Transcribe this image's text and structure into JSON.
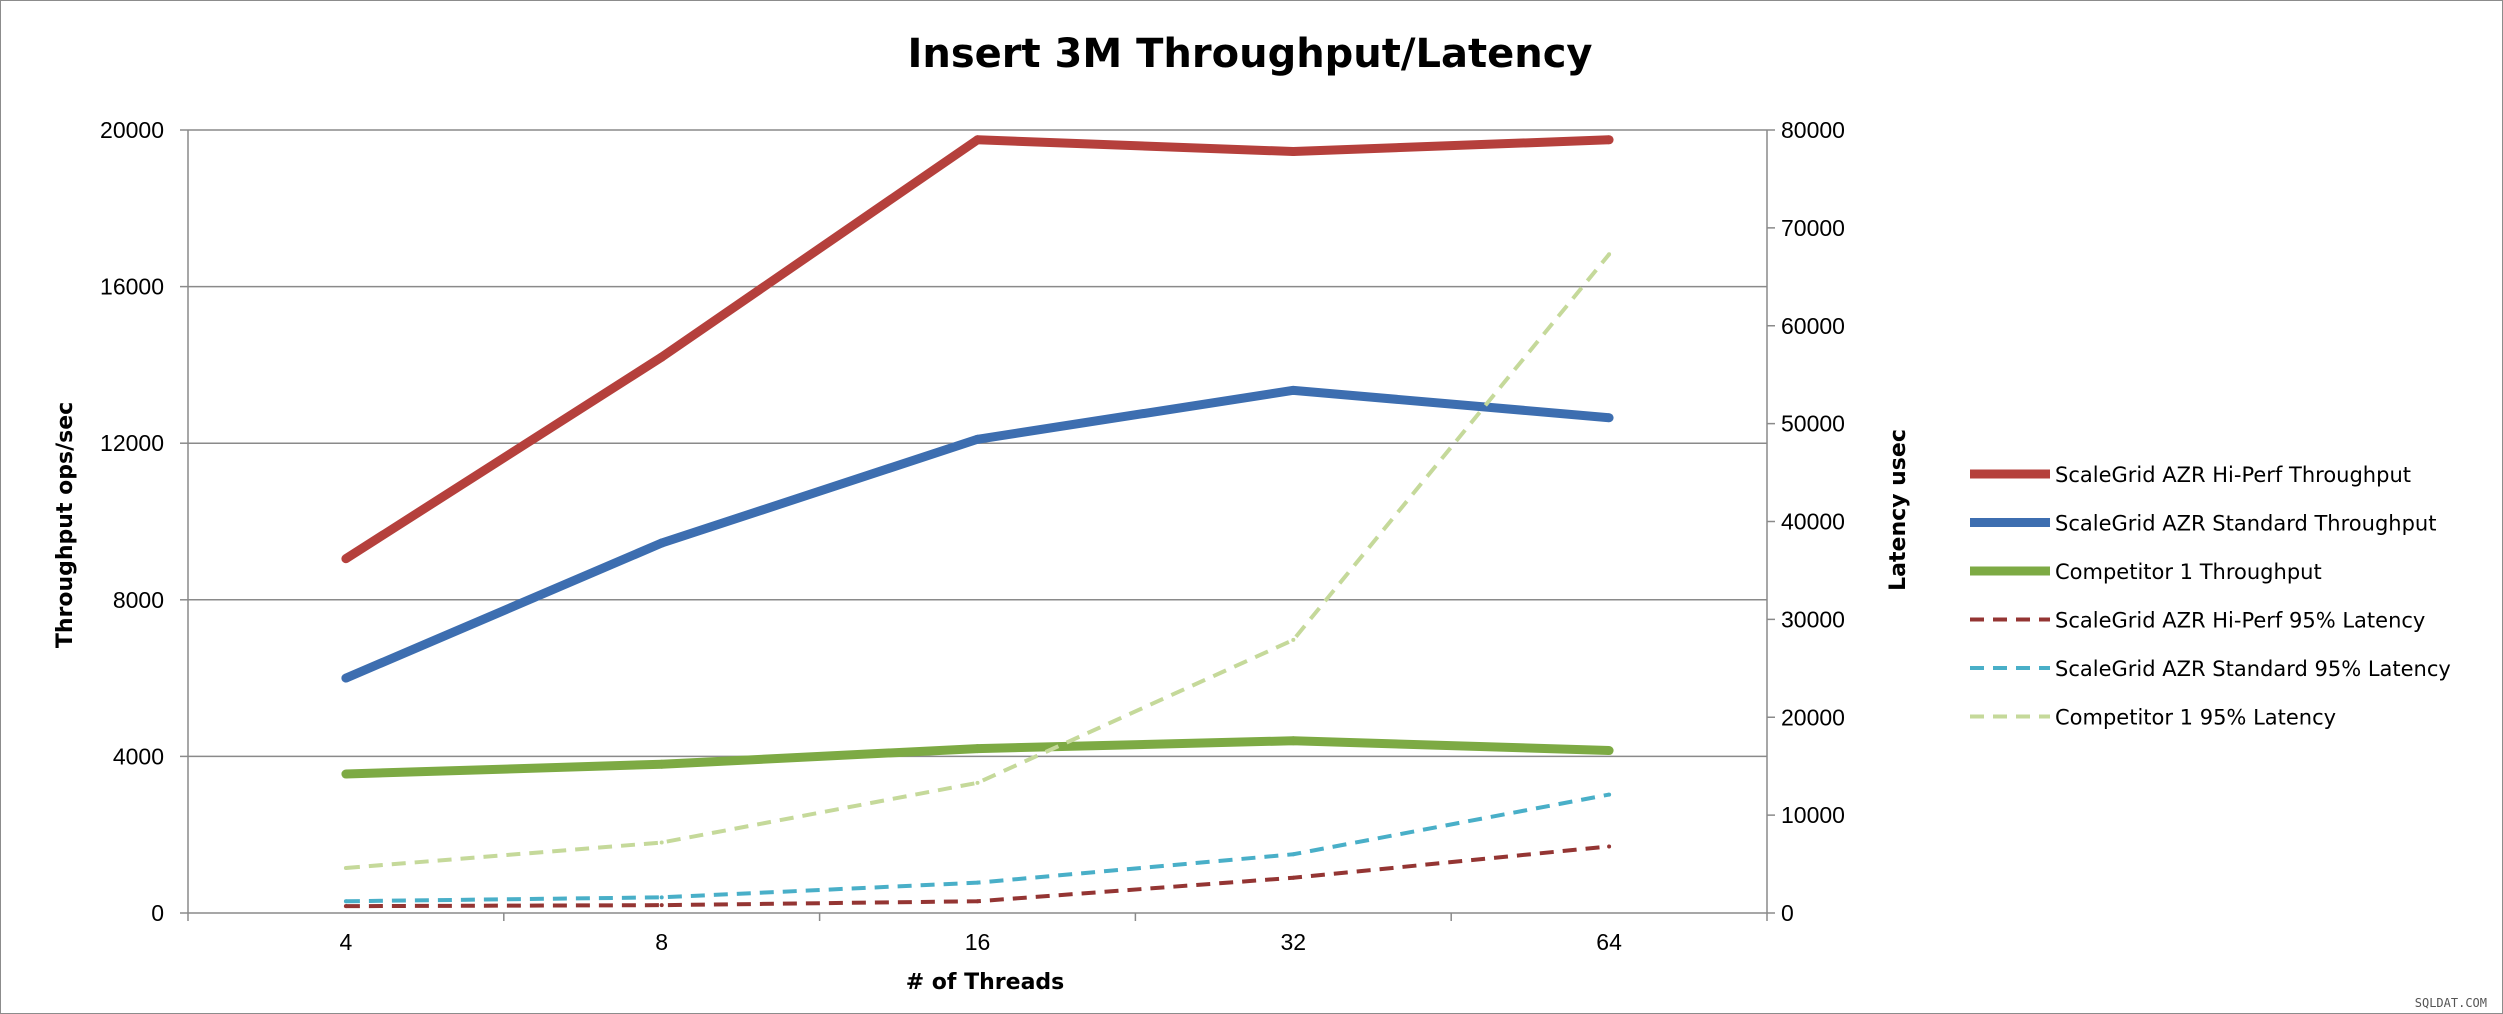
{
  "chart_data": {
    "type": "line",
    "title": "Insert 3M Throughput/Latency",
    "xlabel": "# of Threads",
    "ylabel": "Throughput ops/sec",
    "y2label": "Latency usec",
    "categories": [
      "4",
      "8",
      "16",
      "32",
      "64"
    ],
    "ylim": [
      0,
      20000
    ],
    "y2lim": [
      0,
      80000
    ],
    "yticks": [
      "0",
      "4000",
      "8000",
      "12000",
      "16000",
      "20000"
    ],
    "y2ticks": [
      "0",
      "10000",
      "20000",
      "30000",
      "40000",
      "50000",
      "60000",
      "70000",
      "80000"
    ],
    "grid": true,
    "legend_position": "right",
    "series": [
      {
        "name": "ScaleGrid AZR Hi-Perf Throughput",
        "axis": "left",
        "style": "solid",
        "color": "#b5403c",
        "values": [
          9050,
          14200,
          19750,
          19450,
          19750
        ]
      },
      {
        "name": "ScaleGrid AZR Standard Throughput",
        "axis": "left",
        "style": "solid",
        "color": "#3d6eb0",
        "values": [
          6000,
          9450,
          12100,
          13350,
          12650
        ]
      },
      {
        "name": "Competitor 1 Throughput",
        "axis": "left",
        "style": "solid",
        "color": "#7daa44",
        "values": [
          3550,
          3800,
          4200,
          4400,
          4150
        ]
      },
      {
        "name": "ScaleGrid AZR Hi-Perf 95% Latency",
        "axis": "right",
        "style": "dashed",
        "color": "#943533",
        "values": [
          700,
          800,
          1200,
          3600,
          6800
        ]
      },
      {
        "name": "ScaleGrid AZR Standard 95% Latency",
        "axis": "right",
        "style": "dashed",
        "color": "#49afc8",
        "values": [
          1200,
          1600,
          3100,
          6000,
          12100
        ]
      },
      {
        "name": "Competitor 1 95% Latency",
        "axis": "right",
        "style": "dashed",
        "color": "#c5d99a",
        "values": [
          4600,
          7200,
          13300,
          27900,
          67300
        ]
      }
    ]
  },
  "watermark": "SQLDAT.COM"
}
